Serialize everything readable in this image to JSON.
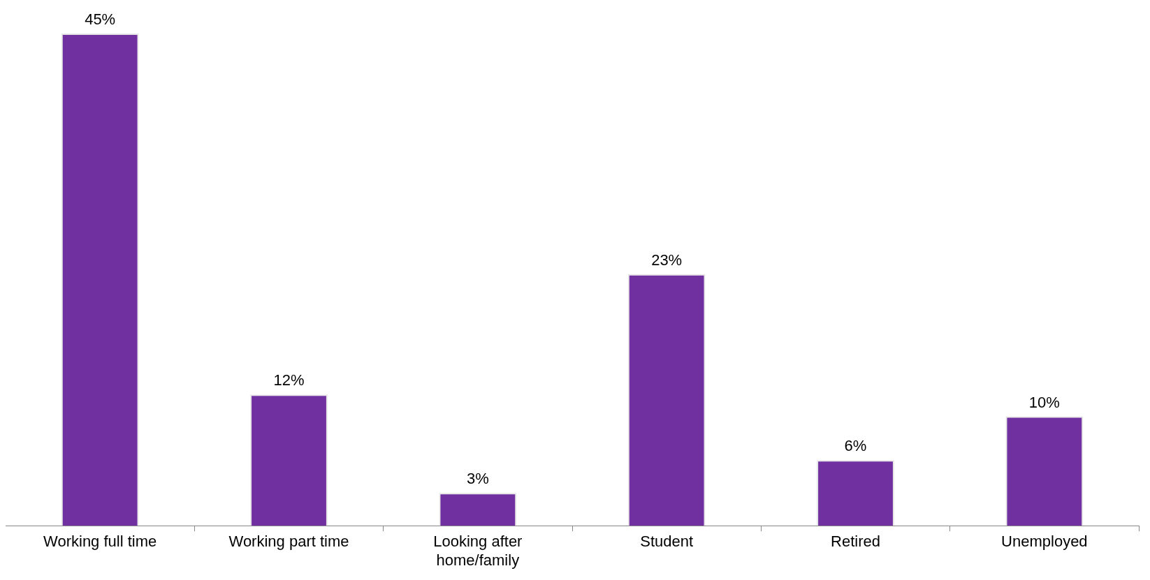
{
  "chart_data": {
    "type": "bar",
    "categories": [
      "Working full time",
      "Working part time",
      "Looking after home/family",
      "Student",
      "Retired",
      "Unemployed"
    ],
    "values": [
      45,
      12,
      3,
      23,
      6,
      10
    ],
    "value_labels": [
      "45%",
      "12%",
      "3%",
      "23%",
      "6%",
      "10%"
    ],
    "color": "#7030a0",
    "grid": false,
    "legend": false
  }
}
